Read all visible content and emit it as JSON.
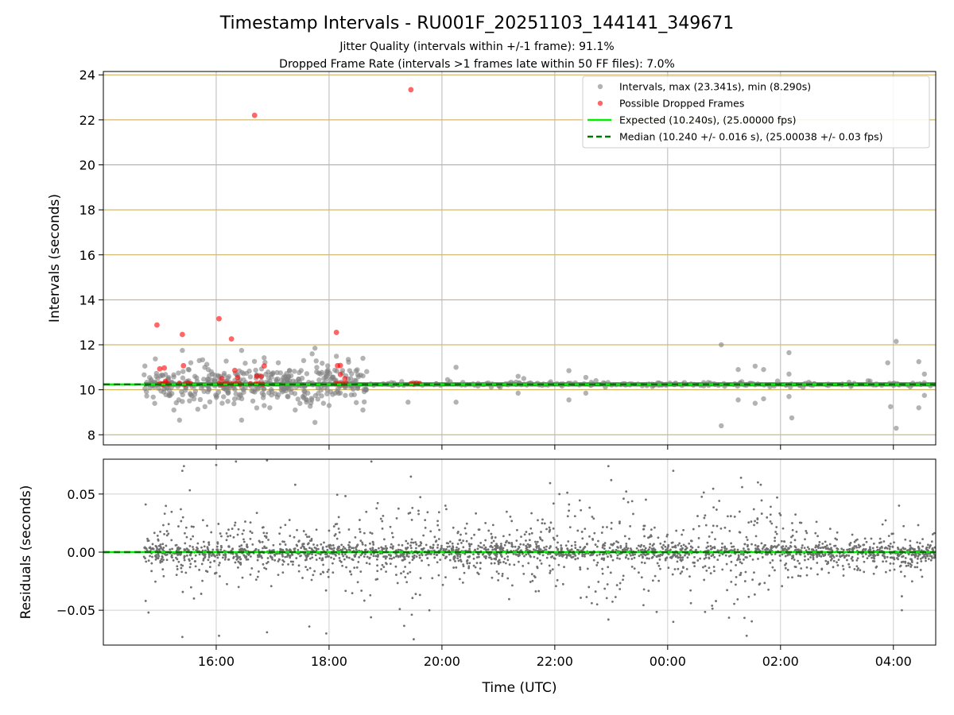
{
  "chart_data": {
    "type": "scatter",
    "title": "Timestamp Intervals - RU001F_20251103_144141_349671",
    "subtitle_lines": [
      "Jitter Quality (intervals within +/-1 frame): 91.1%",
      "Dropped Frame Rate (intervals >1 frames late within 50 FF files): 7.0%"
    ],
    "x_axis": {
      "label": "Time (UTC)",
      "range_hours": [
        14.0,
        28.75
      ],
      "ticks": [
        {
          "value": 16,
          "label": "16:00"
        },
        {
          "value": 18,
          "label": "18:00"
        },
        {
          "value": 20,
          "label": "20:00"
        },
        {
          "value": 22,
          "label": "22:00"
        },
        {
          "value": 24,
          "label": "00:00"
        },
        {
          "value": 26,
          "label": "02:00"
        },
        {
          "value": 28,
          "label": "04:00"
        }
      ]
    },
    "top_panel": {
      "ylabel": "Intervals (seconds)",
      "ylim": [
        7.55,
        24.15
      ],
      "yticks": [
        8,
        10,
        12,
        14,
        16,
        18,
        20,
        22,
        24
      ],
      "expected_interval": 10.24,
      "median_interval": 10.24,
      "colors": {
        "intervals": "#808080",
        "dropped": "#ff0000",
        "expected": "#00ee00",
        "median": "#007700",
        "hgrid": "#c9a84a",
        "vgrid": "#b8b8b8",
        "band": "#1a5e1a"
      },
      "legend": {
        "position": "upper right",
        "entries": [
          {
            "label": "Intervals, max (23.341s), min (8.290s)",
            "kind": "marker",
            "color": "#808080"
          },
          {
            "label": "Possible Dropped Frames",
            "kind": "marker",
            "color": "#ff0000"
          },
          {
            "label": "Expected (10.240s), (25.00000 fps)",
            "kind": "line",
            "color": "#00ee00"
          },
          {
            "label": "Median (10.240 +/- 0.016 s), (25.00038 +/- 0.03 fps)",
            "kind": "dashed",
            "color": "#007700"
          }
        ]
      },
      "dropped_frames": [
        {
          "x": 14.95,
          "y": 12.88
        },
        {
          "x": 15.0,
          "y": 10.93
        },
        {
          "x": 15.08,
          "y": 10.97
        },
        {
          "x": 15.1,
          "y": 10.38
        },
        {
          "x": 15.4,
          "y": 12.46
        },
        {
          "x": 15.42,
          "y": 11.07
        },
        {
          "x": 16.05,
          "y": 13.16
        },
        {
          "x": 16.1,
          "y": 10.5
        },
        {
          "x": 16.27,
          "y": 12.26
        },
        {
          "x": 16.33,
          "y": 10.86
        },
        {
          "x": 16.38,
          "y": 10.54
        },
        {
          "x": 16.68,
          "y": 22.2
        },
        {
          "x": 16.72,
          "y": 10.6
        },
        {
          "x": 16.8,
          "y": 10.6
        },
        {
          "x": 16.85,
          "y": 11.06
        },
        {
          "x": 18.13,
          "y": 12.55
        },
        {
          "x": 18.15,
          "y": 11.07
        },
        {
          "x": 18.2,
          "y": 11.08
        },
        {
          "x": 18.2,
          "y": 10.68
        },
        {
          "x": 18.28,
          "y": 10.5
        },
        {
          "x": 19.45,
          "y": 23.34
        },
        {
          "x": 15.0,
          "y": 10.28
        },
        {
          "x": 15.05,
          "y": 10.25
        },
        {
          "x": 15.1,
          "y": 10.3
        },
        {
          "x": 15.15,
          "y": 10.26
        },
        {
          "x": 15.35,
          "y": 10.27
        },
        {
          "x": 15.45,
          "y": 10.25
        },
        {
          "x": 15.5,
          "y": 10.3
        },
        {
          "x": 15.55,
          "y": 10.26
        },
        {
          "x": 16.05,
          "y": 10.27
        },
        {
          "x": 16.1,
          "y": 10.25
        },
        {
          "x": 16.15,
          "y": 10.26
        },
        {
          "x": 16.2,
          "y": 10.27
        },
        {
          "x": 16.28,
          "y": 10.26
        },
        {
          "x": 16.35,
          "y": 10.28
        },
        {
          "x": 16.42,
          "y": 10.25
        },
        {
          "x": 16.6,
          "y": 10.26
        },
        {
          "x": 16.7,
          "y": 10.27
        },
        {
          "x": 16.75,
          "y": 10.28
        },
        {
          "x": 16.82,
          "y": 10.25
        },
        {
          "x": 18.12,
          "y": 10.26
        },
        {
          "x": 18.18,
          "y": 10.28
        },
        {
          "x": 18.25,
          "y": 10.26
        },
        {
          "x": 18.3,
          "y": 10.27
        },
        {
          "x": 19.45,
          "y": 10.27
        },
        {
          "x": 19.5,
          "y": 10.25
        },
        {
          "x": 19.55,
          "y": 10.3
        },
        {
          "x": 19.6,
          "y": 10.27
        }
      ],
      "outlier_intervals": [
        {
          "x": 15.25,
          "y": 9.1
        },
        {
          "x": 15.35,
          "y": 8.65
        },
        {
          "x": 15.4,
          "y": 11.75
        },
        {
          "x": 15.55,
          "y": 11.2
        },
        {
          "x": 15.7,
          "y": 11.3
        },
        {
          "x": 15.8,
          "y": 9.25
        },
        {
          "x": 16.45,
          "y": 11.75
        },
        {
          "x": 16.45,
          "y": 8.65
        },
        {
          "x": 16.65,
          "y": 9.5
        },
        {
          "x": 16.85,
          "y": 9.3
        },
        {
          "x": 16.95,
          "y": 9.2
        },
        {
          "x": 17.1,
          "y": 11.2
        },
        {
          "x": 17.3,
          "y": 10.85
        },
        {
          "x": 17.4,
          "y": 9.1
        },
        {
          "x": 17.55,
          "y": 11.3
        },
        {
          "x": 17.6,
          "y": 9.45
        },
        {
          "x": 17.7,
          "y": 11.6
        },
        {
          "x": 17.75,
          "y": 11.85
        },
        {
          "x": 17.75,
          "y": 8.55
        },
        {
          "x": 17.9,
          "y": 9.4
        },
        {
          "x": 18.0,
          "y": 9.3
        },
        {
          "x": 18.6,
          "y": 11.4
        },
        {
          "x": 18.6,
          "y": 9.1
        },
        {
          "x": 19.4,
          "y": 9.45
        },
        {
          "x": 20.1,
          "y": 10.45
        },
        {
          "x": 20.25,
          "y": 11.0
        },
        {
          "x": 20.25,
          "y": 9.45
        },
        {
          "x": 21.35,
          "y": 10.6
        },
        {
          "x": 21.35,
          "y": 9.85
        },
        {
          "x": 21.45,
          "y": 10.5
        },
        {
          "x": 22.25,
          "y": 10.85
        },
        {
          "x": 22.25,
          "y": 9.55
        },
        {
          "x": 22.55,
          "y": 10.55
        },
        {
          "x": 22.55,
          "y": 9.85
        },
        {
          "x": 24.95,
          "y": 12.0
        },
        {
          "x": 24.95,
          "y": 8.4
        },
        {
          "x": 25.25,
          "y": 10.9
        },
        {
          "x": 25.25,
          "y": 9.55
        },
        {
          "x": 25.55,
          "y": 11.05
        },
        {
          "x": 25.55,
          "y": 9.4
        },
        {
          "x": 25.7,
          "y": 10.9
        },
        {
          "x": 25.7,
          "y": 9.6
        },
        {
          "x": 26.15,
          "y": 11.65
        },
        {
          "x": 26.15,
          "y": 10.7
        },
        {
          "x": 26.15,
          "y": 9.7
        },
        {
          "x": 26.2,
          "y": 8.75
        },
        {
          "x": 27.55,
          "y": 10.4
        },
        {
          "x": 27.9,
          "y": 11.2
        },
        {
          "x": 27.95,
          "y": 9.25
        },
        {
          "x": 28.05,
          "y": 12.15
        },
        {
          "x": 28.05,
          "y": 8.29
        },
        {
          "x": 28.45,
          "y": 11.25
        },
        {
          "x": 28.45,
          "y": 9.2
        },
        {
          "x": 28.55,
          "y": 10.7
        },
        {
          "x": 28.55,
          "y": 9.75
        }
      ]
    },
    "bottom_panel": {
      "ylabel": "Residuals (seconds)",
      "ylim": [
        -0.08,
        0.08
      ],
      "yticks": [
        {
          "value": 0.05,
          "label": "0.05"
        },
        {
          "value": 0.0,
          "label": "0.00"
        },
        {
          "value": -0.05,
          "label": "−0.05"
        }
      ],
      "zero_line_color": "#00ee00",
      "point_color": "#707070",
      "residual_spread_profile": [
        {
          "x": 14.7,
          "spread": 0.01
        },
        {
          "x": 15.5,
          "spread": 0.018
        },
        {
          "x": 16.5,
          "spread": 0.014
        },
        {
          "x": 17.5,
          "spread": 0.01
        },
        {
          "x": 18.2,
          "spread": 0.02
        },
        {
          "x": 19.0,
          "spread": 0.025
        },
        {
          "x": 20.0,
          "spread": 0.018
        },
        {
          "x": 21.0,
          "spread": 0.012
        },
        {
          "x": 22.0,
          "spread": 0.025
        },
        {
          "x": 23.0,
          "spread": 0.03
        },
        {
          "x": 24.0,
          "spread": 0.012
        },
        {
          "x": 25.2,
          "spread": 0.03
        },
        {
          "x": 26.0,
          "spread": 0.018
        },
        {
          "x": 27.0,
          "spread": 0.008
        },
        {
          "x": 28.0,
          "spread": 0.01
        },
        {
          "x": 28.75,
          "spread": 0.008
        }
      ],
      "notable_residuals": [
        {
          "x": 14.75,
          "y": 0.041
        },
        {
          "x": 14.75,
          "y": -0.042
        },
        {
          "x": 14.8,
          "y": -0.052
        },
        {
          "x": 15.4,
          "y": 0.07
        },
        {
          "x": 15.4,
          "y": -0.073
        },
        {
          "x": 16.0,
          "y": 0.075
        },
        {
          "x": 16.05,
          "y": -0.072
        },
        {
          "x": 16.35,
          "y": 0.078
        },
        {
          "x": 16.9,
          "y": 0.079
        },
        {
          "x": 16.9,
          "y": -0.069
        },
        {
          "x": 17.4,
          "y": 0.058
        },
        {
          "x": 17.65,
          "y": -0.064
        },
        {
          "x": 17.95,
          "y": -0.07
        },
        {
          "x": 18.75,
          "y": 0.078
        },
        {
          "x": 19.45,
          "y": 0.065
        },
        {
          "x": 19.5,
          "y": -0.075
        },
        {
          "x": 22.95,
          "y": 0.074
        },
        {
          "x": 22.95,
          "y": -0.058
        },
        {
          "x": 23.0,
          "y": 0.062
        },
        {
          "x": 24.1,
          "y": 0.07
        },
        {
          "x": 24.1,
          "y": -0.06
        },
        {
          "x": 25.3,
          "y": 0.064
        },
        {
          "x": 25.4,
          "y": -0.072
        },
        {
          "x": 25.6,
          "y": 0.06
        },
        {
          "x": 25.65,
          "y": 0.058
        },
        {
          "x": 28.1,
          "y": 0.04
        },
        {
          "x": 28.15,
          "y": -0.038
        },
        {
          "x": 28.15,
          "y": -0.05
        }
      ]
    }
  }
}
